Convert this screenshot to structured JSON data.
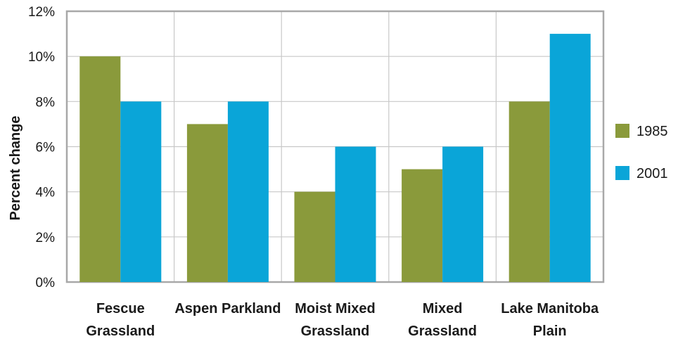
{
  "chart_data": {
    "type": "bar",
    "categories": [
      [
        "Fescue",
        "Grassland"
      ],
      [
        "Aspen Parkland"
      ],
      [
        "Moist Mixed",
        "Grassland"
      ],
      [
        "Mixed",
        "Grassland"
      ],
      [
        "Lake Manitoba",
        "Plain"
      ]
    ],
    "series": [
      {
        "name": "1985",
        "color": "#8a9a3b",
        "values": [
          10,
          7,
          4,
          5,
          8
        ]
      },
      {
        "name": "2001",
        "color": "#0aa5d8",
        "values": [
          8,
          8,
          6,
          6,
          11
        ]
      }
    ],
    "ylabel": "Percent change",
    "ylim": [
      0,
      12
    ],
    "yticks": [
      0,
      2,
      4,
      6,
      8,
      10,
      12
    ],
    "ytick_format": "%",
    "grid": "horizontal and vertical",
    "legend_position": "right"
  }
}
